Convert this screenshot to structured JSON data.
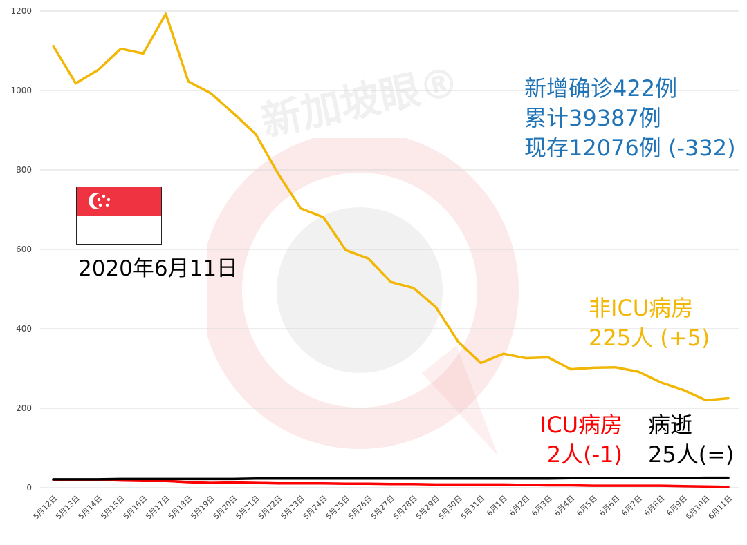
{
  "watermark": "新加坡眼®",
  "date_label": "2020年6月11日",
  "annotations": {
    "summary": [
      "新增确诊422例",
      "累计39387例",
      "现存12076例 (-332)"
    ],
    "non_icu": [
      "非ICU病房",
      "225人 (+5)"
    ],
    "icu": [
      "ICU病房",
      "2人(-1)"
    ],
    "deaths": [
      "病逝",
      "25人(=)"
    ]
  },
  "colors": {
    "non_icu": "#f2b705",
    "icu": "#ff0000",
    "deaths": "#000000",
    "summary": "#1f73b7"
  },
  "chart_data": {
    "type": "line",
    "x": [
      "5月12日",
      "5月13日",
      "5月14日",
      "5月15日",
      "5月16日",
      "5月17日",
      "5月18日",
      "5月19日",
      "5月20日",
      "5月21日",
      "5月22日",
      "5月23日",
      "5月24日",
      "5月25日",
      "5月26日",
      "5月27日",
      "5月28日",
      "5月29日",
      "5月30日",
      "5月31日",
      "6月1日",
      "6月2日",
      "6月3日",
      "6月4日",
      "6月5日",
      "6月6日",
      "6月7日",
      "6月8日",
      "6月9日",
      "6月10日",
      "6月11日"
    ],
    "yticks": [
      0,
      200,
      400,
      600,
      800,
      1000,
      1200
    ],
    "ylim": [
      0,
      1200
    ],
    "grid": true,
    "series": [
      {
        "name": "非ICU病房",
        "color": "#f2b705",
        "values": [
          1112,
          1018,
          1052,
          1105,
          1093,
          1193,
          1023,
          993,
          943,
          890,
          790,
          703,
          681,
          598,
          577,
          518,
          503,
          455,
          367,
          314,
          337,
          326,
          328,
          298,
          302,
          303,
          292,
          265,
          246,
          220,
          225
        ]
      },
      {
        "name": "ICU病房",
        "color": "#ff0000",
        "values": [
          20,
          20,
          20,
          18,
          17,
          17,
          14,
          12,
          13,
          12,
          11,
          11,
          11,
          10,
          10,
          9,
          9,
          8,
          8,
          8,
          8,
          7,
          6,
          6,
          5,
          5,
          5,
          5,
          4,
          3,
          2
        ]
      },
      {
        "name": "病逝",
        "color": "#000000",
        "values": [
          21,
          21,
          21,
          22,
          22,
          22,
          22,
          22,
          22,
          23,
          23,
          23,
          23,
          23,
          23,
          23,
          23,
          23,
          23,
          23,
          23,
          23,
          23,
          24,
          24,
          24,
          24,
          24,
          24,
          25,
          25
        ]
      }
    ]
  }
}
